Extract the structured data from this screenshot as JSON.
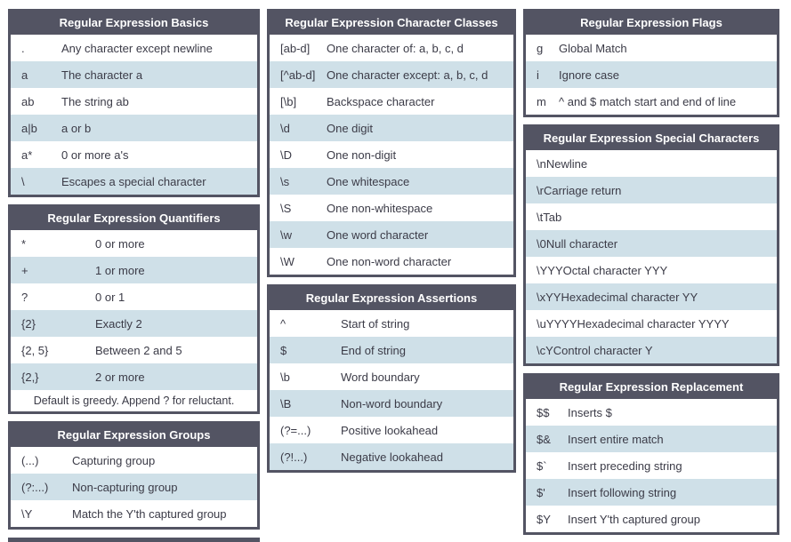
{
  "theme": {
    "header_bg": "#535463",
    "border_color": "#535463",
    "header_text_color": "#ffffff",
    "row_bg": "#ffffff",
    "row_alt_bg": "#cfe0e8",
    "row_text_color": "#3b3b47"
  },
  "tables": {
    "basics": {
      "title": "Regular Expression Basics",
      "rows": [
        [
          ".",
          "Any character except newline"
        ],
        [
          "a",
          "The character a"
        ],
        [
          "ab",
          "The string ab"
        ],
        [
          "a|b",
          "a or b"
        ],
        [
          "a*",
          "0 or more a's"
        ],
        [
          "\\",
          "Escapes a special character"
        ]
      ]
    },
    "quantifiers": {
      "title": "Regular Expression Quantifiers",
      "rows": [
        [
          "*",
          "0 or more"
        ],
        [
          "+",
          "1 or more"
        ],
        [
          "?",
          "0 or 1"
        ],
        [
          "{2}",
          "Exactly 2"
        ],
        [
          "{2, 5}",
          "Between 2 and 5"
        ],
        [
          "{2,}",
          "2 or more"
        ]
      ],
      "footer": "Default is greedy. Append ? for reluctant."
    },
    "groups": {
      "title": "Regular Expression Groups",
      "rows": [
        [
          "(...)",
          "Capturing group"
        ],
        [
          "(?:...)",
          "Non-capturing group"
        ],
        [
          "\\Y",
          "Match the Y'th captured group"
        ]
      ]
    },
    "char_classes": {
      "title": "Regular Expression Character Classes",
      "rows": [
        [
          "[ab-d]",
          "One character of: a, b, c, d"
        ],
        [
          "[^ab-d]",
          "One character except: a, b, c, d"
        ],
        [
          "[\\b]",
          "Backspace character"
        ],
        [
          "\\d",
          "One digit"
        ],
        [
          "\\D",
          "One non-digit"
        ],
        [
          "\\s",
          "One whitespace"
        ],
        [
          "\\S",
          "One non-whitespace"
        ],
        [
          "\\w",
          "One word character"
        ],
        [
          "\\W",
          "One non-word character"
        ]
      ]
    },
    "assertions": {
      "title": "Regular Expression Assertions",
      "rows": [
        [
          "^",
          "Start of string"
        ],
        [
          "$",
          "End of string"
        ],
        [
          "\\b",
          "Word boundary"
        ],
        [
          "\\B",
          "Non-word boundary"
        ],
        [
          "(?=...)",
          "Positive lookahead"
        ],
        [
          "(?!...)",
          "Negative lookahead"
        ]
      ]
    },
    "flags": {
      "title": "Regular Expression Flags",
      "rows": [
        [
          "g",
          "Global Match"
        ],
        [
          "i",
          "Ignore case"
        ],
        [
          "m",
          "^ and $ match start and end of line"
        ]
      ]
    },
    "special_chars": {
      "title": "Regular Expression Special Characters",
      "rows": [
        [
          "\\n",
          "Newline"
        ],
        [
          "\\r",
          "Carriage return"
        ],
        [
          "\\t",
          "Tab"
        ],
        [
          "\\0",
          "Null character"
        ],
        [
          "\\YYY",
          "Octal character YYY"
        ],
        [
          "\\xYY",
          "Hexadecimal character YY"
        ],
        [
          "\\uYYYY",
          "Hexadecimal character YYYY"
        ],
        [
          "\\cY",
          "Control character Y"
        ]
      ]
    },
    "replacement": {
      "title": "Regular Expression Replacement",
      "rows": [
        [
          "$$",
          "Inserts $"
        ],
        [
          "$&",
          "Insert entire match"
        ],
        [
          "$`",
          "Insert preceding string"
        ],
        [
          "$'",
          "Insert following string"
        ],
        [
          "$Y",
          "Insert Y'th captured group"
        ]
      ]
    }
  }
}
